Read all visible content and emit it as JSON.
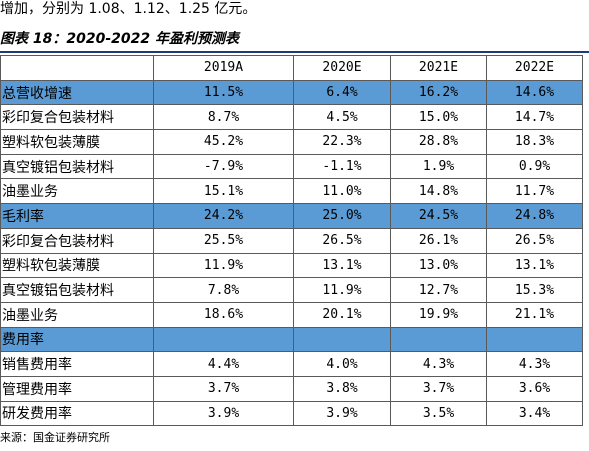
{
  "intro_text": "增加，分别为 1.08、1.12、1.25 亿元。",
  "figure_title": "图表 18：2020-2022 年盈利预测表",
  "table": {
    "corner": "",
    "columns": [
      "2019A",
      "2020E",
      "2021E",
      "2022E"
    ],
    "rows": [
      {
        "label": "总营收增速",
        "highlight": true,
        "values": [
          "11.5%",
          "6.4%",
          "16.2%",
          "14.6%"
        ]
      },
      {
        "label": "彩印复合包装材料",
        "highlight": false,
        "values": [
          "8.7%",
          "4.5%",
          "15.0%",
          "14.7%"
        ]
      },
      {
        "label": "塑料软包装薄膜",
        "highlight": false,
        "values": [
          "45.2%",
          "22.3%",
          "28.8%",
          "18.3%"
        ]
      },
      {
        "label": "真空镀铝包装材料",
        "highlight": false,
        "values": [
          "-7.9%",
          "-1.1%",
          "1.9%",
          "0.9%"
        ]
      },
      {
        "label": "油墨业务",
        "highlight": false,
        "values": [
          "15.1%",
          "11.0%",
          "14.8%",
          "11.7%"
        ]
      },
      {
        "label": "毛利率",
        "highlight": true,
        "values": [
          "24.2%",
          "25.0%",
          "24.5%",
          "24.8%"
        ]
      },
      {
        "label": "彩印复合包装材料",
        "highlight": false,
        "values": [
          "25.5%",
          "26.5%",
          "26.1%",
          "26.5%"
        ]
      },
      {
        "label": "塑料软包装薄膜",
        "highlight": false,
        "values": [
          "11.9%",
          "13.1%",
          "13.0%",
          "13.1%"
        ]
      },
      {
        "label": "真空镀铝包装材料",
        "highlight": false,
        "values": [
          "7.8%",
          "11.9%",
          "12.7%",
          "15.3%"
        ]
      },
      {
        "label": "油墨业务",
        "highlight": false,
        "values": [
          "18.6%",
          "20.1%",
          "19.9%",
          "21.1%"
        ]
      },
      {
        "label": "费用率",
        "highlight": true,
        "values": [
          "",
          "",
          "",
          ""
        ]
      },
      {
        "label": "销售费用率",
        "highlight": false,
        "values": [
          "4.4%",
          "4.0%",
          "4.3%",
          "4.3%"
        ]
      },
      {
        "label": "管理费用率",
        "highlight": false,
        "values": [
          "3.7%",
          "3.8%",
          "3.7%",
          "3.6%"
        ]
      },
      {
        "label": "研发费用率",
        "highlight": false,
        "values": [
          "3.9%",
          "3.9%",
          "3.5%",
          "3.4%"
        ]
      }
    ]
  },
  "source_text": "来源：国金证券研究所",
  "colors": {
    "highlight_row": "#5b9bd5",
    "title_rule": "#1f3a7a"
  }
}
